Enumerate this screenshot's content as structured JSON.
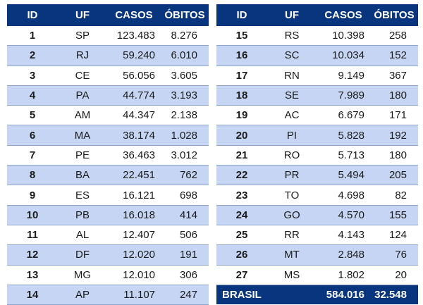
{
  "headers": [
    "ID",
    "UF",
    "CASOS",
    "ÓBITOS"
  ],
  "left_rows": [
    {
      "id": "1",
      "uf": "SP",
      "casos": "123.483",
      "obitos": "8.276"
    },
    {
      "id": "2",
      "uf": "RJ",
      "casos": "59.240",
      "obitos": "6.010"
    },
    {
      "id": "3",
      "uf": "CE",
      "casos": "56.056",
      "obitos": "3.605"
    },
    {
      "id": "4",
      "uf": "PA",
      "casos": "44.774",
      "obitos": "3.193"
    },
    {
      "id": "5",
      "uf": "AM",
      "casos": "44.347",
      "obitos": "2.138"
    },
    {
      "id": "6",
      "uf": "MA",
      "casos": "38.174",
      "obitos": "1.028"
    },
    {
      "id": "7",
      "uf": "PE",
      "casos": "36.463",
      "obitos": "3.012"
    },
    {
      "id": "8",
      "uf": "BA",
      "casos": "22.451",
      "obitos": "762"
    },
    {
      "id": "9",
      "uf": "ES",
      "casos": "16.121",
      "obitos": "698"
    },
    {
      "id": "10",
      "uf": "PB",
      "casos": "16.018",
      "obitos": "414"
    },
    {
      "id": "11",
      "uf": "AL",
      "casos": "12.407",
      "obitos": "506"
    },
    {
      "id": "12",
      "uf": "DF",
      "casos": "12.020",
      "obitos": "191"
    },
    {
      "id": "13",
      "uf": "MG",
      "casos": "12.010",
      "obitos": "306"
    },
    {
      "id": "14",
      "uf": "AP",
      "casos": "11.107",
      "obitos": "247"
    }
  ],
  "right_rows": [
    {
      "id": "15",
      "uf": "RS",
      "casos": "10.398",
      "obitos": "258"
    },
    {
      "id": "16",
      "uf": "SC",
      "casos": "10.034",
      "obitos": "152"
    },
    {
      "id": "17",
      "uf": "RN",
      "casos": "9.149",
      "obitos": "367"
    },
    {
      "id": "18",
      "uf": "SE",
      "casos": "7.989",
      "obitos": "180"
    },
    {
      "id": "19",
      "uf": "AC",
      "casos": "6.679",
      "obitos": "171"
    },
    {
      "id": "20",
      "uf": "PI",
      "casos": "5.828",
      "obitos": "192"
    },
    {
      "id": "21",
      "uf": "RO",
      "casos": "5.713",
      "obitos": "180"
    },
    {
      "id": "22",
      "uf": "PR",
      "casos": "5.494",
      "obitos": "205"
    },
    {
      "id": "23",
      "uf": "TO",
      "casos": "4.698",
      "obitos": "82"
    },
    {
      "id": "24",
      "uf": "GO",
      "casos": "4.570",
      "obitos": "155"
    },
    {
      "id": "25",
      "uf": "RR",
      "casos": "4.143",
      "obitos": "124"
    },
    {
      "id": "26",
      "uf": "MT",
      "casos": "2.848",
      "obitos": "76"
    },
    {
      "id": "27",
      "uf": "MS",
      "casos": "1.802",
      "obitos": "20"
    }
  ],
  "total": {
    "label": "BRASIL",
    "casos": "584.016",
    "obitos": "32.548"
  },
  "colors": {
    "header_bg": "#08357d",
    "stripe": "#c6d5f3"
  }
}
